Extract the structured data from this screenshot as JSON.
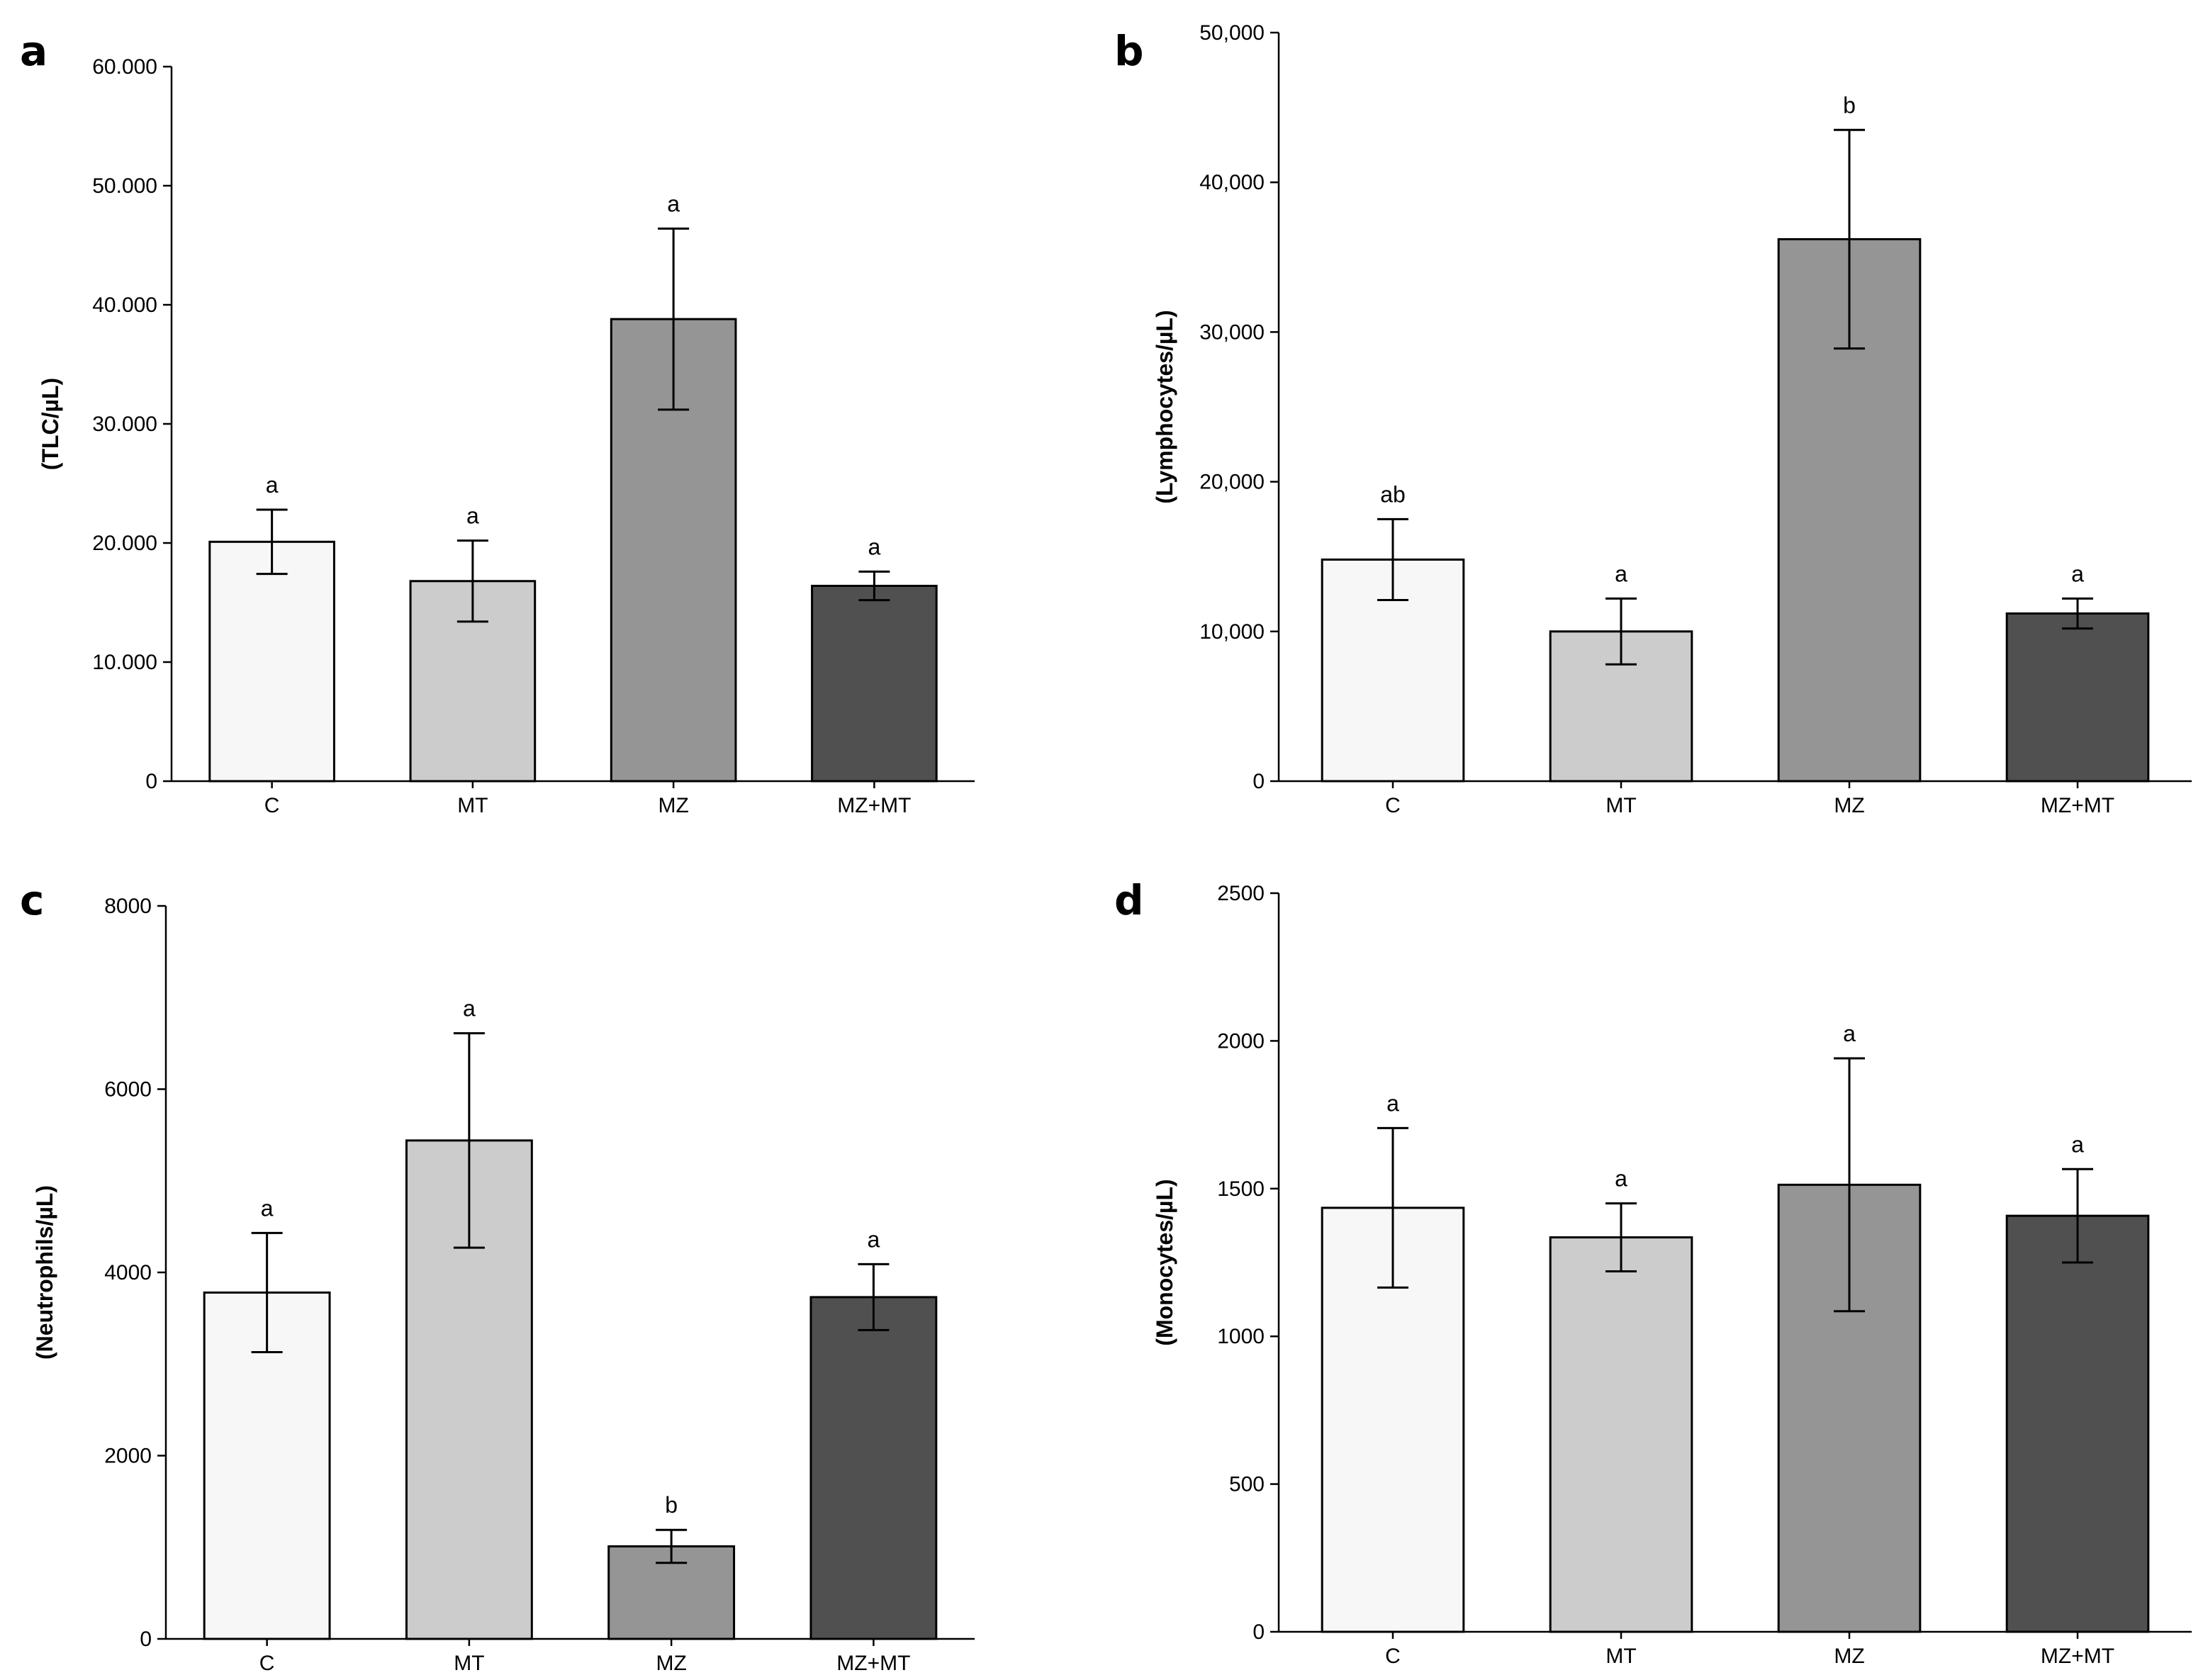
{
  "chart_data": [
    {
      "panel": "a",
      "type": "bar",
      "title": "",
      "xlabel": "",
      "ylabel": "(TLC/µL)",
      "categories": [
        "C",
        "MT",
        "MZ",
        "MZ+MT"
      ],
      "values": [
        20100,
        16800,
        38800,
        16400
      ],
      "errors": [
        2700,
        3400,
        7600,
        1200
      ],
      "significance": [
        "a",
        "a",
        "a",
        "a"
      ],
      "ylim": [
        0,
        60000
      ],
      "yticks": [
        0,
        10000,
        20000,
        30000,
        40000,
        50000,
        60000
      ],
      "ytick_labels": [
        "0",
        "10.000",
        "20.000",
        "30.000",
        "40.000",
        "50.000",
        "60.000"
      ],
      "colors": [
        "#f7f7f7",
        "#cccccc",
        "#959595",
        "#505050"
      ]
    },
    {
      "panel": "b",
      "type": "bar",
      "title": "",
      "xlabel": "",
      "ylabel": "(Lymphocytes/µL)",
      "categories": [
        "C",
        "MT",
        "MZ",
        "MZ+MT"
      ],
      "values": [
        14800,
        10000,
        36200,
        11200
      ],
      "errors": [
        2700,
        2200,
        7300,
        1000
      ],
      "significance": [
        "ab",
        "a",
        "b",
        "a"
      ],
      "ylim": [
        0,
        50000
      ],
      "yticks": [
        0,
        10000,
        20000,
        30000,
        40000,
        50000
      ],
      "ytick_labels": [
        "0",
        "10,000",
        "20,000",
        "30,000",
        "40,000",
        "50,000"
      ],
      "colors": [
        "#f7f7f7",
        "#cccccc",
        "#959595",
        "#505050"
      ]
    },
    {
      "panel": "c",
      "type": "bar",
      "title": "",
      "xlabel": "",
      "ylabel": "(Neutrophils/µL)",
      "categories": [
        "C",
        "MT",
        "MZ",
        "MZ+MT"
      ],
      "values": [
        3780,
        5440,
        1010,
        3730
      ],
      "errors": [
        650,
        1170,
        180,
        360
      ],
      "significance": [
        "a",
        "a",
        "b",
        "a"
      ],
      "ylim": [
        0,
        8000
      ],
      "yticks": [
        0,
        2000,
        4000,
        6000,
        8000
      ],
      "ytick_labels": [
        "0",
        "2000",
        "4000",
        "6000",
        "8000"
      ],
      "colors": [
        "#f7f7f7",
        "#cccccc",
        "#959595",
        "#505050"
      ]
    },
    {
      "panel": "d",
      "type": "bar",
      "title": "",
      "xlabel": "",
      "ylabel": "(Monocytes/µL)",
      "categories": [
        "C",
        "MT",
        "MZ",
        "MZ+MT"
      ],
      "values": [
        1435,
        1335,
        1513,
        1408
      ],
      "errors": [
        270,
        115,
        428,
        158
      ],
      "significance": [
        "a",
        "a",
        "a",
        "a"
      ],
      "ylim": [
        0,
        2500
      ],
      "yticks": [
        0,
        500,
        1000,
        1500,
        2000,
        2500
      ],
      "ytick_labels": [
        "0",
        "500",
        "1000",
        "1500",
        "2000",
        "2500"
      ],
      "colors": [
        "#f7f7f7",
        "#cccccc",
        "#959595",
        "#505050"
      ]
    }
  ]
}
